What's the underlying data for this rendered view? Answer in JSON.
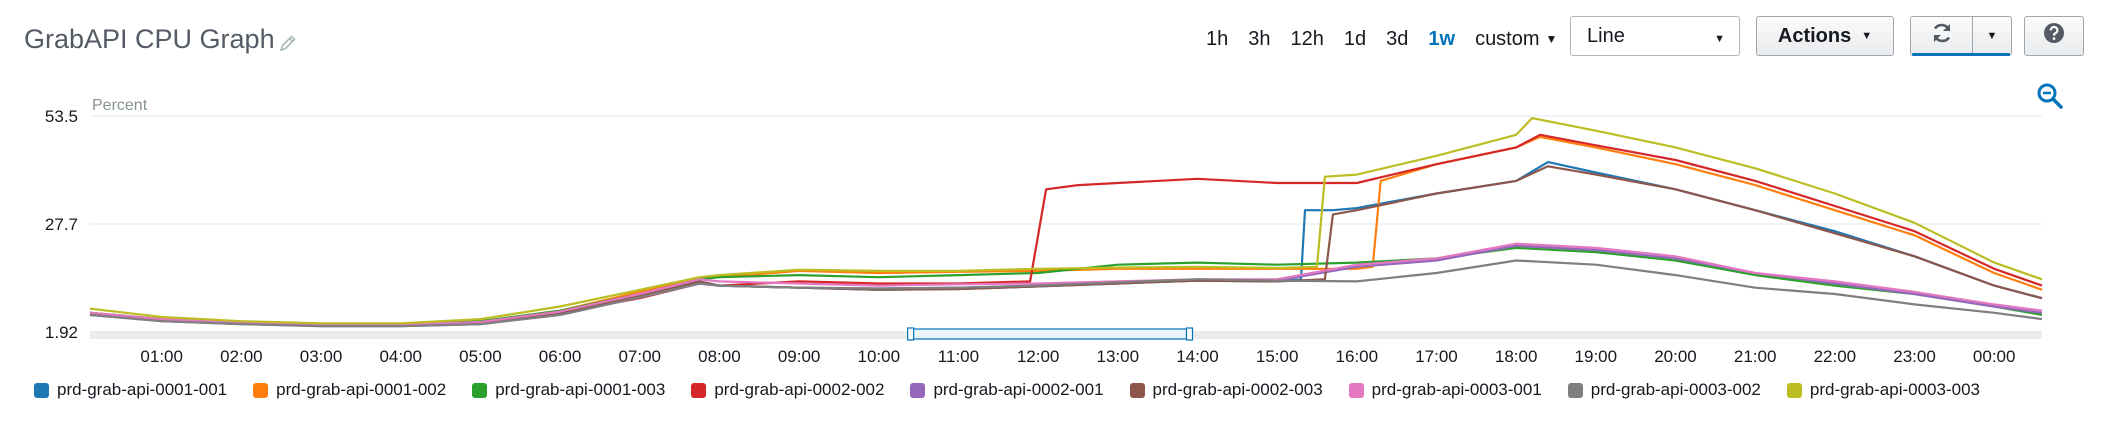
{
  "header": {
    "title": "GrabAPI CPU Graph",
    "edit_icon": "pencil-icon"
  },
  "time_ranges": [
    {
      "label": "1h",
      "active": false
    },
    {
      "label": "3h",
      "active": false
    },
    {
      "label": "12h",
      "active": false
    },
    {
      "label": "1d",
      "active": false
    },
    {
      "label": "3d",
      "active": false
    },
    {
      "label": "1w",
      "active": true
    },
    {
      "label": "custom",
      "active": false
    }
  ],
  "toolbar": {
    "graph_type": "Line",
    "actions_label": "Actions",
    "refresh_icon": "refresh-icon",
    "help_icon": "question-icon",
    "zoom_icon": "zoom-out-icon"
  },
  "colors": {
    "prd-grab-api-0001-001": "#1f77b4",
    "prd-grab-api-0001-002": "#ff7f0e",
    "prd-grab-api-0001-003": "#2ca02c",
    "prd-grab-api-0002-002": "#d62728",
    "prd-grab-api-0002-001": "#9467bd",
    "prd-grab-api-0002-003": "#8c564b",
    "prd-grab-api-0003-001": "#e377c2",
    "prd-grab-api-0003-002": "#7f7f7f",
    "prd-grab-api-0003-003": "#bcbd22"
  },
  "chart_data": {
    "type": "line",
    "ylabel": "Percent",
    "yticks": [
      1.92,
      27.7,
      53.5
    ],
    "ylim": [
      1.92,
      53.5
    ],
    "xlim": [
      0.1,
      24.6
    ],
    "xticks": [
      "01:00",
      "02:00",
      "03:00",
      "04:00",
      "05:00",
      "06:00",
      "07:00",
      "08:00",
      "09:00",
      "10:00",
      "11:00",
      "12:00",
      "13:00",
      "14:00",
      "15:00",
      "16:00",
      "17:00",
      "18:00",
      "19:00",
      "20:00",
      "21:00",
      "22:00",
      "23:00",
      "00:00"
    ],
    "grid": true,
    "legend": "bottom",
    "range_selector": [
      10.4,
      13.9
    ],
    "series": [
      {
        "name": "prd-grab-api-0001-001",
        "points": [
          [
            0.1,
            6.5
          ],
          [
            1,
            5
          ],
          [
            2,
            4
          ],
          [
            3,
            3.5
          ],
          [
            4,
            3.5
          ],
          [
            5,
            4
          ],
          [
            6,
            6.5
          ],
          [
            7,
            10.5
          ],
          [
            7.75,
            14
          ],
          [
            8,
            13
          ],
          [
            9,
            12.5
          ],
          [
            10,
            12
          ],
          [
            11,
            12.2
          ],
          [
            12,
            12.8
          ],
          [
            13,
            13.5
          ],
          [
            14,
            14.2
          ],
          [
            15,
            14
          ],
          [
            15.3,
            14.5
          ],
          [
            15.35,
            31
          ],
          [
            15.7,
            31
          ],
          [
            16,
            31.5
          ],
          [
            17,
            35
          ],
          [
            18,
            38
          ],
          [
            18.4,
            42.5
          ],
          [
            19,
            40
          ],
          [
            20,
            36
          ],
          [
            21,
            31
          ],
          [
            22,
            26
          ],
          [
            23,
            20
          ],
          [
            24,
            13
          ],
          [
            24.6,
            10
          ]
        ]
      },
      {
        "name": "prd-grab-api-0001-002",
        "points": [
          [
            0.1,
            6.5
          ],
          [
            1,
            5
          ],
          [
            2,
            4
          ],
          [
            3,
            3.5
          ],
          [
            4,
            3.5
          ],
          [
            5,
            4.5
          ],
          [
            6,
            7
          ],
          [
            7,
            11.5
          ],
          [
            7.75,
            15
          ],
          [
            8,
            15
          ],
          [
            9,
            16.5
          ],
          [
            10,
            16
          ],
          [
            11,
            16.3
          ],
          [
            12,
            16.5
          ],
          [
            13,
            17
          ],
          [
            14,
            17
          ],
          [
            15,
            17
          ],
          [
            16,
            17
          ],
          [
            16.2,
            17.5
          ],
          [
            16.3,
            38
          ],
          [
            17,
            42
          ],
          [
            18,
            46
          ],
          [
            18.3,
            48.5
          ],
          [
            19,
            46
          ],
          [
            20,
            42
          ],
          [
            21,
            37
          ],
          [
            22,
            31
          ],
          [
            23,
            25
          ],
          [
            24,
            16
          ],
          [
            24.6,
            12
          ]
        ]
      },
      {
        "name": "prd-grab-api-0001-003",
        "points": [
          [
            0.1,
            6.5
          ],
          [
            1,
            5
          ],
          [
            2,
            4
          ],
          [
            3,
            3.5
          ],
          [
            4,
            3.5
          ],
          [
            5,
            4.5
          ],
          [
            6,
            7
          ],
          [
            7,
            11
          ],
          [
            7.75,
            14.5
          ],
          [
            8,
            15
          ],
          [
            9,
            15.5
          ],
          [
            10,
            15
          ],
          [
            11,
            15.5
          ],
          [
            12,
            16
          ],
          [
            13,
            18
          ],
          [
            14,
            18.5
          ],
          [
            15,
            18
          ],
          [
            16,
            18.5
          ],
          [
            17,
            19.5
          ],
          [
            18,
            22
          ],
          [
            19,
            21
          ],
          [
            20,
            19
          ],
          [
            21,
            15.5
          ],
          [
            22,
            13
          ],
          [
            23,
            11
          ],
          [
            24,
            8
          ],
          [
            24.6,
            6
          ]
        ]
      },
      {
        "name": "prd-grab-api-0002-002",
        "points": [
          [
            0.1,
            6
          ],
          [
            1,
            4.8
          ],
          [
            2,
            4
          ],
          [
            3,
            3.5
          ],
          [
            4,
            3.5
          ],
          [
            5,
            4
          ],
          [
            6,
            6.5
          ],
          [
            7,
            10
          ],
          [
            7.75,
            13.5
          ],
          [
            8,
            13
          ],
          [
            9,
            14
          ],
          [
            10,
            13.5
          ],
          [
            11,
            13.5
          ],
          [
            11.9,
            14
          ],
          [
            12.1,
            36
          ],
          [
            12.5,
            37
          ],
          [
            13,
            37.5
          ],
          [
            14,
            38.5
          ],
          [
            15,
            37.5
          ],
          [
            16,
            37.5
          ],
          [
            17,
            42
          ],
          [
            18,
            46
          ],
          [
            18.3,
            49
          ],
          [
            19,
            46.5
          ],
          [
            20,
            43
          ],
          [
            21,
            38
          ],
          [
            22,
            32
          ],
          [
            23,
            26
          ],
          [
            24,
            17
          ],
          [
            24.6,
            13
          ]
        ]
      },
      {
        "name": "prd-grab-api-0002-001",
        "points": [
          [
            0.1,
            6
          ],
          [
            1,
            4.5
          ],
          [
            2,
            3.8
          ],
          [
            3,
            3.3
          ],
          [
            4,
            3.3
          ],
          [
            5,
            3.8
          ],
          [
            6,
            6
          ],
          [
            7,
            10.2
          ],
          [
            7.75,
            13.5
          ],
          [
            8,
            13
          ],
          [
            9,
            12.5
          ],
          [
            10,
            12.3
          ],
          [
            11,
            12.5
          ],
          [
            12,
            13
          ],
          [
            13,
            13.8
          ],
          [
            14,
            14.5
          ],
          [
            15,
            14.2
          ],
          [
            16,
            17.5
          ],
          [
            17,
            19
          ],
          [
            18,
            22.5
          ],
          [
            19,
            21.5
          ],
          [
            20,
            19.5
          ],
          [
            21,
            16
          ],
          [
            22,
            13.5
          ],
          [
            23,
            11
          ],
          [
            24,
            8
          ],
          [
            24.6,
            6.5
          ]
        ]
      },
      {
        "name": "prd-grab-api-0002-003",
        "points": [
          [
            0.1,
            6
          ],
          [
            1,
            4.8
          ],
          [
            2,
            4
          ],
          [
            3,
            3.5
          ],
          [
            4,
            3.5
          ],
          [
            5,
            4
          ],
          [
            6,
            6.5
          ],
          [
            7,
            10.5
          ],
          [
            7.75,
            14
          ],
          [
            8,
            13
          ],
          [
            9,
            12.5
          ],
          [
            10,
            12
          ],
          [
            11,
            12.2
          ],
          [
            12,
            12.8
          ],
          [
            13,
            13.5
          ],
          [
            14,
            14.2
          ],
          [
            15,
            14
          ],
          [
            15.6,
            14.5
          ],
          [
            15.7,
            30
          ],
          [
            16,
            31
          ],
          [
            17,
            35
          ],
          [
            18,
            38
          ],
          [
            18.4,
            41.5
          ],
          [
            19,
            39.5
          ],
          [
            20,
            36
          ],
          [
            21,
            31
          ],
          [
            22,
            25.5
          ],
          [
            23,
            20
          ],
          [
            24,
            13
          ],
          [
            24.6,
            10
          ]
        ]
      },
      {
        "name": "prd-grab-api-0003-001",
        "points": [
          [
            0.1,
            6.5
          ],
          [
            1,
            5
          ],
          [
            2,
            4.2
          ],
          [
            3,
            3.6
          ],
          [
            4,
            3.6
          ],
          [
            5,
            4.3
          ],
          [
            6,
            6.8
          ],
          [
            7,
            11
          ],
          [
            7.75,
            14.5
          ],
          [
            8,
            14
          ],
          [
            9,
            13.5
          ],
          [
            10,
            13
          ],
          [
            11,
            13.3
          ],
          [
            12,
            13.5
          ],
          [
            13,
            14
          ],
          [
            14,
            14.5
          ],
          [
            15,
            14.5
          ],
          [
            16,
            18
          ],
          [
            17,
            19.5
          ],
          [
            18,
            23
          ],
          [
            19,
            22
          ],
          [
            20,
            20
          ],
          [
            21,
            16
          ],
          [
            22,
            14
          ],
          [
            23,
            11.5
          ],
          [
            24,
            8.5
          ],
          [
            24.6,
            7
          ]
        ]
      },
      {
        "name": "prd-grab-api-0003-002",
        "points": [
          [
            0.1,
            6
          ],
          [
            1,
            4.5
          ],
          [
            2,
            3.8
          ],
          [
            3,
            3.3
          ],
          [
            4,
            3.3
          ],
          [
            5,
            3.8
          ],
          [
            6,
            6
          ],
          [
            7,
            10.2
          ],
          [
            7.75,
            13.5
          ],
          [
            8,
            13
          ],
          [
            9,
            12.5
          ],
          [
            10,
            12.3
          ],
          [
            11,
            12.5
          ],
          [
            12,
            13
          ],
          [
            13,
            13.8
          ],
          [
            14,
            14.5
          ],
          [
            15,
            14.2
          ],
          [
            16,
            14
          ],
          [
            17,
            16
          ],
          [
            18,
            19
          ],
          [
            19,
            18
          ],
          [
            20,
            15.5
          ],
          [
            21,
            12.5
          ],
          [
            22,
            11
          ],
          [
            23,
            8.5
          ],
          [
            24,
            6.5
          ],
          [
            24.6,
            5
          ]
        ]
      },
      {
        "name": "prd-grab-api-0003-003",
        "points": [
          [
            0.1,
            7.5
          ],
          [
            1,
            5.5
          ],
          [
            2,
            4.5
          ],
          [
            3,
            4
          ],
          [
            4,
            4
          ],
          [
            5,
            5
          ],
          [
            6,
            8
          ],
          [
            7,
            12
          ],
          [
            7.75,
            15
          ],
          [
            8,
            15.5
          ],
          [
            9,
            16.8
          ],
          [
            10,
            16.5
          ],
          [
            11,
            16.5
          ],
          [
            12,
            17
          ],
          [
            13,
            17.3
          ],
          [
            14,
            17.5
          ],
          [
            15,
            17.2
          ],
          [
            15.5,
            17.5
          ],
          [
            15.6,
            39
          ],
          [
            16,
            39.5
          ],
          [
            17,
            44
          ],
          [
            18,
            49
          ],
          [
            18.2,
            53
          ],
          [
            19,
            50
          ],
          [
            20,
            46
          ],
          [
            21,
            41
          ],
          [
            22,
            35
          ],
          [
            23,
            28
          ],
          [
            24,
            18.5
          ],
          [
            24.6,
            14.5
          ]
        ]
      }
    ]
  }
}
